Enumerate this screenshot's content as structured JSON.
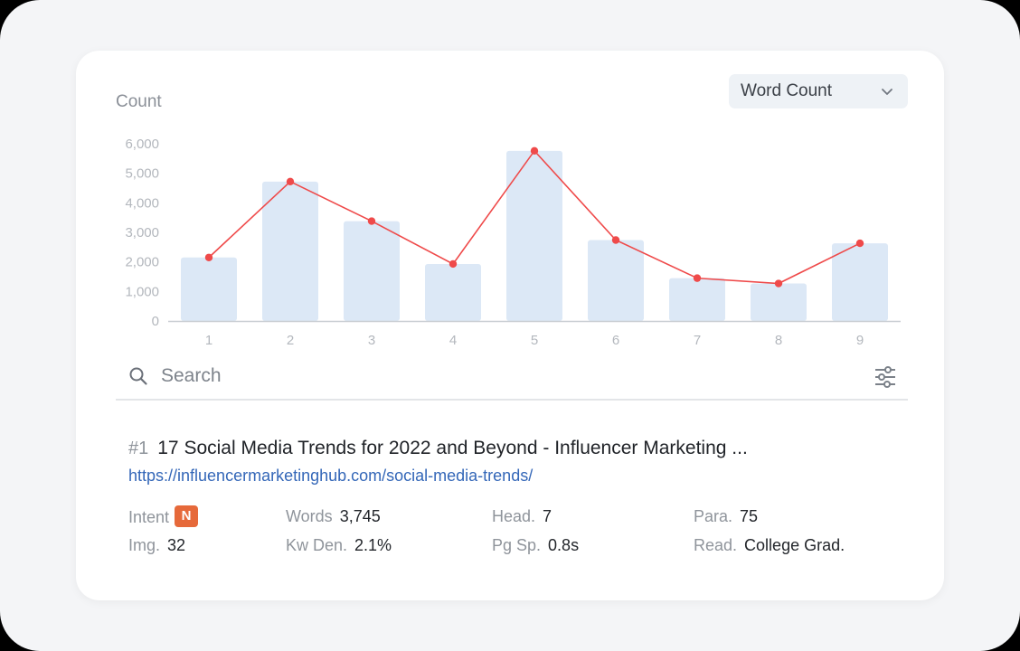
{
  "chart_data": {
    "type": "bar",
    "ylabel": "Count",
    "categories": [
      "1",
      "2",
      "3",
      "4",
      "5",
      "6",
      "7",
      "8",
      "9"
    ],
    "yticks": [
      "0",
      "1,000",
      "2,000",
      "3,000",
      "4,000",
      "5,000",
      "6,000"
    ],
    "ylim": [
      0,
      6000
    ],
    "series": [
      {
        "values": [
          2150,
          4720,
          3380,
          1930,
          5760,
          2740,
          1450,
          1270,
          2630
        ],
        "color": "#dce8f6"
      },
      {
        "type": "line",
        "values": [
          2150,
          4720,
          3380,
          1930,
          5760,
          2740,
          1450,
          1270,
          2630
        ],
        "color": "#ef4a4a"
      }
    ],
    "grid": false,
    "legend": "none"
  },
  "metric_select": {
    "value": "Word Count",
    "icon": "chevron-down-icon"
  },
  "search": {
    "placeholder": "Search"
  },
  "result": {
    "rank": "#1",
    "title": "17 Social Media Trends for 2022 and Beyond - Influencer Marketing ...",
    "url": "https://influencermarketinghub.com/social-media-trends/"
  },
  "metrics": {
    "intent_label": "Intent",
    "intent_value": "N",
    "intent_color": "#e6693a",
    "words_label": "Words",
    "words_value": "3,745",
    "head_label": "Head.",
    "head_value": "7",
    "para_label": "Para.",
    "para_value": "75",
    "img_label": "Img.",
    "img_value": "32",
    "kwden_label": "Kw Den.",
    "kwden_value": "2.1%",
    "pgsp_label": "Pg Sp.",
    "pgsp_value": "0.8s",
    "read_label": "Read.",
    "read_value": "College Grad."
  }
}
